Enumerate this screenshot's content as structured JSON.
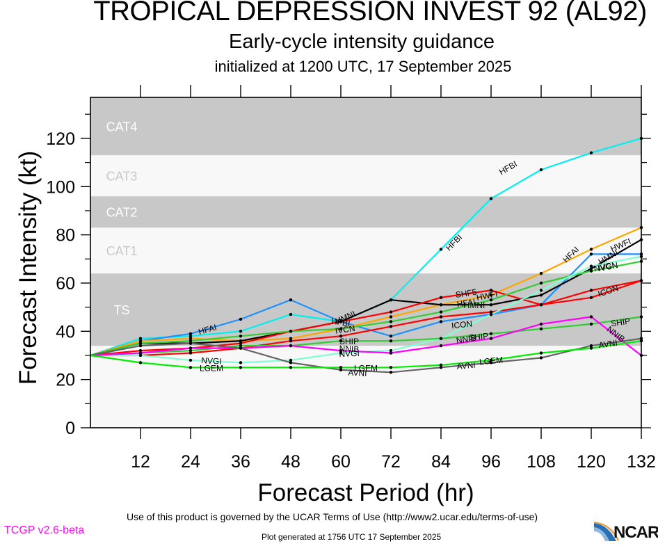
{
  "header": {
    "title": "TROPICAL DEPRESSION INVEST 92 (AL92)",
    "subtitle": "Early-cycle intensity guidance",
    "init_line": "initialized at 1200 UTC, 17 September 2025"
  },
  "footer": {
    "terms": "Use of this product is governed by the UCAR Terms of Use (http://www2.ucar.edu/terms-of-use)",
    "generated": "Plot generated at 1756 UTC   17 September 2025",
    "version": "TCGP v2.6-beta",
    "version_color": "#ff00ff",
    "logo_text": "NCAR"
  },
  "chart_data": {
    "type": "line",
    "title": "TROPICAL DEPRESSION INVEST 92 (AL92)",
    "xlabel": "Forecast Period (hr)",
    "ylabel": "Forecast Intensity (kt)",
    "xlim": [
      0,
      132
    ],
    "ylim": [
      0,
      137
    ],
    "xticks": [
      12,
      24,
      36,
      48,
      60,
      72,
      84,
      96,
      108,
      120,
      132
    ],
    "yticks": [
      0,
      20,
      40,
      60,
      80,
      100,
      120
    ],
    "grid": false,
    "legend": "none (inline series labels)",
    "bands": [
      {
        "name": "TS",
        "from": 34,
        "to": 64,
        "fill": "#c8c8c8",
        "label_color": "#ffffff"
      },
      {
        "name": "CAT1",
        "from": 64,
        "to": 83,
        "fill": "#f8f8f8",
        "label_color": "#c8c8c8"
      },
      {
        "name": "CAT2",
        "from": 83,
        "to": 96,
        "fill": "#c8c8c8",
        "label_color": "#ffffff"
      },
      {
        "name": "CAT3",
        "from": 96,
        "to": 113,
        "fill": "#f8f8f8",
        "label_color": "#c8c8c8"
      },
      {
        "name": "CAT4",
        "from": 113,
        "to": 137,
        "fill": "#c8c8c8",
        "label_color": "#ffffff"
      }
    ],
    "below_band_fill": "#f8f8f8",
    "series": [
      {
        "name": "HFBI",
        "color": "#00f0f0",
        "x": [
          0,
          12,
          24,
          36,
          48,
          60,
          72,
          84,
          96,
          108,
          120,
          132
        ],
        "values": [
          30,
          37,
          38,
          40,
          47,
          44,
          53,
          74,
          95,
          107,
          114,
          120
        ],
        "label_at": [
          [
            60,
            44
          ],
          [
            87,
            77
          ],
          [
            100,
            108
          ]
        ]
      },
      {
        "name": "HFAI",
        "color": "#1e90ff",
        "x": [
          0,
          12,
          24,
          36,
          48,
          60,
          72,
          84,
          96,
          108,
          120,
          132
        ],
        "values": [
          30,
          36,
          39,
          45,
          53,
          44,
          38,
          44,
          47,
          51,
          72,
          72
        ],
        "label_at": [
          [
            28,
            41
          ],
          [
            90,
            52
          ],
          [
            115,
            72
          ]
        ]
      },
      {
        "name": "HWFI",
        "color": "#ffa500",
        "x": [
          0,
          12,
          24,
          36,
          48,
          60,
          72,
          84,
          96,
          108,
          120,
          132
        ],
        "values": [
          30,
          36,
          37,
          36,
          37,
          41,
          46,
          51,
          55,
          64,
          74,
          83
        ],
        "label_at": [
          [
            95,
            55
          ],
          [
            127,
            76
          ]
        ]
      },
      {
        "name": "HMNI",
        "color": "#000000",
        "x": [
          0,
          12,
          24,
          36,
          48,
          60,
          72,
          84,
          96,
          108,
          120,
          132
        ],
        "values": [
          30,
          35,
          35,
          36,
          40,
          44,
          53,
          51,
          51,
          55,
          66,
          78
        ],
        "label_at": [
          [
            61,
            46
          ],
          [
            92,
            51
          ],
          [
            124,
            71
          ]
        ]
      },
      {
        "name": "SHF5",
        "color": "#ff0000",
        "x": [
          0,
          12,
          24,
          36,
          48,
          60,
          72,
          84,
          96,
          108,
          120,
          132
        ],
        "values": [
          30,
          32,
          33,
          35,
          40,
          44,
          48,
          54,
          57,
          51,
          57,
          61
        ],
        "label_at": [
          [
            90,
            56
          ]
        ]
      },
      {
        "name": "ICON",
        "color": "#ff0000",
        "x": [
          0,
          12,
          24,
          36,
          48,
          60,
          72,
          84,
          96,
          108,
          120,
          132
        ],
        "values": [
          30,
          30,
          31,
          33,
          36,
          38,
          42,
          46,
          48,
          51,
          54,
          61
        ],
        "label_at": [
          [
            89,
            43
          ],
          [
            124,
            57
          ]
        ]
      },
      {
        "name": "IVCN",
        "color": "#32cd32",
        "x": [
          0,
          12,
          24,
          36,
          48,
          60,
          72,
          84,
          96,
          108,
          120,
          132
        ],
        "values": [
          30,
          35,
          36,
          38,
          40,
          41,
          44,
          48,
          53,
          60,
          65,
          69
        ],
        "label_at": [
          [
            61,
            41
          ],
          [
            124,
            67
          ]
        ]
      },
      {
        "name": "NVGI",
        "color": "#7fffd4",
        "x": [
          0,
          12,
          24,
          36,
          48,
          60,
          72,
          84,
          96,
          108,
          120,
          132
        ],
        "values": [
          30,
          30,
          28,
          27,
          28,
          31,
          32,
          37,
          47,
          57,
          67,
          71
        ],
        "label_at": [
          [
            29,
            28
          ],
          [
            62,
            31
          ],
          [
            123,
            67
          ]
        ]
      },
      {
        "name": "SHIP",
        "color": "#32cd32",
        "x": [
          0,
          12,
          24,
          36,
          48,
          60,
          72,
          84,
          96,
          108,
          120,
          132
        ],
        "values": [
          30,
          31,
          32,
          34,
          34,
          36,
          36,
          37,
          39,
          41,
          43,
          46
        ],
        "label_at": [
          [
            62,
            36
          ],
          [
            93,
            38
          ],
          [
            127,
            44
          ]
        ]
      },
      {
        "name": "NNIB",
        "color": "#ff00ff",
        "x": [
          0,
          12,
          24,
          36,
          48,
          60,
          72,
          84,
          96,
          108,
          120,
          132
        ],
        "values": [
          30,
          31,
          33,
          33,
          34,
          32,
          31,
          34,
          37,
          43,
          46,
          30
        ],
        "label_at": [
          [
            62,
            33
          ],
          [
            90,
            37
          ],
          [
            126,
            39
          ]
        ]
      },
      {
        "name": "AVNI",
        "color": "#646464",
        "x": [
          0,
          12,
          24,
          36,
          48,
          60,
          72,
          84,
          96,
          108,
          120,
          132
        ],
        "values": [
          30,
          34,
          35,
          33,
          27,
          24,
          23,
          25,
          27,
          29,
          34,
          37
        ],
        "label_at": [
          [
            64,
            23
          ],
          [
            90,
            26
          ],
          [
            124,
            35
          ]
        ]
      },
      {
        "name": "LGEM",
        "color": "#00ee00",
        "x": [
          0,
          12,
          24,
          36,
          48,
          60,
          72,
          84,
          96,
          108,
          120,
          132
        ],
        "values": [
          30,
          27,
          25,
          25,
          25,
          25,
          25,
          26,
          28,
          31,
          33,
          36
        ],
        "label_at": [
          [
            29,
            25
          ],
          [
            66,
            25
          ],
          [
            96,
            28
          ]
        ]
      }
    ]
  }
}
